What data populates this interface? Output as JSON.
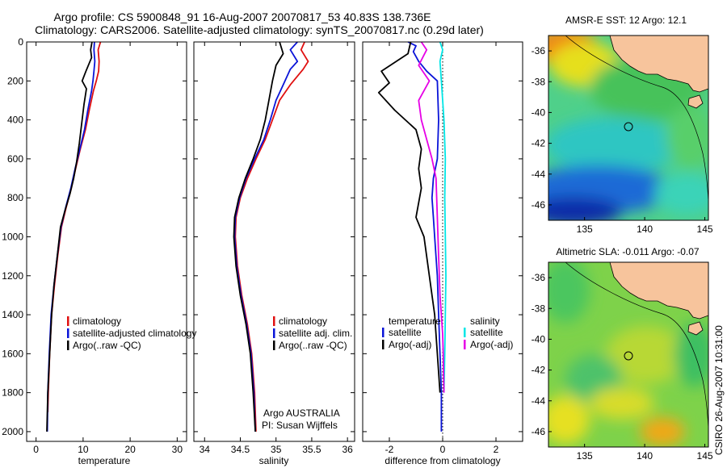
{
  "header": {
    "title_line1": "Argo profile: CS 5900848_91 16-Aug-2007 20070817_53 40.83S 138.736E",
    "title_line2": "Climatology: CARS2006. Satellite-adjusted climatology: synTS_20070817.nc (0.29d later)"
  },
  "credits": {
    "argo": "Argo AUSTRALIA",
    "pi": "PI: Susan Wijffels",
    "stamp": "CSIRO 26-Aug-2007 10:31:00"
  },
  "colors": {
    "climatology": "#e01010",
    "satellite": "#0a14d8",
    "argo": "#000000",
    "sal_satellite": "#00e6e6",
    "sal_argo": "#e600e6",
    "land": "#f7c49c"
  },
  "chart_data": [
    {
      "type": "line",
      "id": "temperature",
      "xlabel": "temperature",
      "ylabel": "",
      "xlim": [
        -2,
        32
      ],
      "ylim": [
        2050,
        0
      ],
      "xticks": [
        "0",
        "10",
        "20",
        "30"
      ],
      "xtick_values": [
        0,
        10,
        20,
        30
      ],
      "yticks": [
        "0",
        "200",
        "400",
        "600",
        "800",
        "1000",
        "1200",
        "1400",
        "1600",
        "1800",
        "2000"
      ],
      "ytick_values": [
        0,
        200,
        400,
        600,
        800,
        1000,
        1200,
        1400,
        1600,
        1800,
        2000
      ],
      "legend": [
        "climatology",
        "satellite-adjusted climatology",
        "Argo(..raw -QC)"
      ],
      "legend_position": "lower-right",
      "series": [
        {
          "name": "climatology",
          "color": "#e01010",
          "x": [
            13.7,
            13.2,
            13.4,
            13.3,
            12.8,
            12.2,
            11.3,
            10.5,
            9.4,
            8.4,
            7.5,
            6.4,
            5.4,
            4.6,
            3.9,
            3.3,
            2.9,
            2.6,
            2.5
          ],
          "y": [
            0,
            40,
            100,
            150,
            200,
            250,
            350,
            450,
            550,
            650,
            750,
            850,
            950,
            1100,
            1250,
            1400,
            1600,
            1800,
            1900
          ]
        },
        {
          "name": "satellite-adjusted climatology",
          "color": "#0a14d8",
          "x": [
            12.4,
            12.3,
            12.5,
            12.3,
            12.1,
            11.8,
            11.0,
            10.3,
            9.3,
            8.3,
            7.4,
            6.3,
            5.3,
            4.5,
            3.8,
            3.2,
            2.8,
            2.5,
            2.4
          ],
          "y": [
            0,
            40,
            100,
            150,
            200,
            250,
            350,
            450,
            550,
            650,
            750,
            850,
            950,
            1100,
            1250,
            1400,
            1600,
            1800,
            2000
          ]
        },
        {
          "name": "Argo(..raw -QC)",
          "color": "#000000",
          "x": [
            11.9,
            11.6,
            11.8,
            10.6,
            9.8,
            10.7,
            10.2,
            9.7,
            9.2,
            8.6,
            8.0,
            7.2,
            6.2,
            5.2,
            4.5,
            3.8,
            3.3,
            2.9,
            2.5,
            2.3
          ],
          "y": [
            0,
            40,
            80,
            150,
            200,
            240,
            320,
            420,
            520,
            620,
            700,
            780,
            860,
            950,
            1100,
            1250,
            1400,
            1600,
            1800,
            2000
          ]
        }
      ]
    },
    {
      "type": "line",
      "id": "salinity",
      "xlabel": "salinity",
      "xlim": [
        33.85,
        36.1
      ],
      "ylim": [
        2050,
        0
      ],
      "xticks": [
        "34",
        "34.5",
        "35",
        "35.5",
        "36"
      ],
      "xtick_values": [
        34,
        34.5,
        35,
        35.5,
        36
      ],
      "legend": [
        "climatology",
        "satellite adj. clim.",
        "Argo(..raw -QC)"
      ],
      "legend_position": "lower-right",
      "series": [
        {
          "name": "climatology",
          "color": "#e01010",
          "x": [
            35.4,
            35.35,
            35.45,
            35.38,
            35.2,
            35.05,
            34.95,
            34.85,
            34.72,
            34.6,
            34.5,
            34.44,
            34.43,
            34.46,
            34.52,
            34.6,
            34.66,
            34.7,
            34.72
          ],
          "y": [
            0,
            40,
            100,
            140,
            220,
            300,
            400,
            500,
            600,
            700,
            800,
            900,
            1000,
            1150,
            1300,
            1450,
            1600,
            1800,
            2000
          ]
        },
        {
          "name": "satellite adj. clim.",
          "color": "#0a14d8",
          "x": [
            35.3,
            35.2,
            35.3,
            35.2,
            35.1,
            35.0,
            34.92,
            34.83,
            34.7,
            34.58,
            34.49,
            34.43,
            34.42,
            34.45,
            34.51,
            34.59,
            34.65,
            34.69,
            34.71
          ],
          "y": [
            0,
            40,
            100,
            140,
            220,
            300,
            400,
            500,
            600,
            700,
            800,
            900,
            1000,
            1150,
            1300,
            1450,
            1600,
            1800,
            2000
          ]
        },
        {
          "name": "Argo(..raw -QC)",
          "color": "#000000",
          "x": [
            35.05,
            35.1,
            35.0,
            34.95,
            34.9,
            34.85,
            34.78,
            34.68,
            34.57,
            34.48,
            34.42,
            34.41,
            34.44,
            34.5,
            34.58,
            34.64,
            34.68,
            34.71
          ],
          "y": [
            0,
            60,
            120,
            200,
            300,
            400,
            500,
            600,
            700,
            800,
            900,
            1000,
            1150,
            1300,
            1450,
            1600,
            1800,
            2000
          ]
        }
      ]
    },
    {
      "type": "line",
      "id": "difference",
      "xlabel": "difference from climatology",
      "xlim": [
        -3,
        3
      ],
      "ylim": [
        2050,
        0
      ],
      "xticks": [
        "-2",
        "0",
        "2"
      ],
      "xtick_values": [
        -2,
        0,
        2
      ],
      "legend": [
        "temperature",
        "satellite",
        "Argo(-adj)",
        "salinity",
        "satellite",
        "Argo(-adj)"
      ],
      "legend_position": "lower-center",
      "zero_line": true,
      "series": [
        {
          "name": "temperature satellite",
          "color": "#0a14d8",
          "x": [
            -1.3,
            -1.0,
            -1.1,
            -0.9,
            -0.6,
            -0.2,
            -0.15,
            -0.2,
            -0.35,
            -0.4,
            -0.35,
            -0.3,
            -0.2,
            -0.15,
            -0.1,
            -0.05,
            -0.05
          ],
          "y": [
            0,
            20,
            50,
            100,
            150,
            200,
            400,
            600,
            700,
            800,
            900,
            1000,
            1200,
            1400,
            1600,
            1800,
            2000
          ]
        },
        {
          "name": "temperature Argo(-adj)",
          "color": "#000000",
          "x": [
            -1.2,
            -1.3,
            -2.3,
            -2.0,
            -2.4,
            -1.8,
            -1.0,
            -0.8,
            -0.9,
            -0.8,
            -1.0,
            -0.7,
            -0.5,
            -0.3,
            -0.2,
            -0.1
          ],
          "y": [
            0,
            60,
            150,
            210,
            260,
            350,
            450,
            550,
            650,
            750,
            900,
            1000,
            1200,
            1400,
            1600,
            1800
          ]
        },
        {
          "name": "salinity satellite",
          "color": "#00e6e6",
          "x": [
            -0.1,
            0.0,
            -0.1,
            -0.05,
            0.05,
            0.1,
            0.08,
            0.1,
            0.12,
            0.1,
            0.08,
            0.05
          ],
          "y": [
            0,
            40,
            100,
            200,
            400,
            600,
            800,
            1000,
            1200,
            1400,
            1600,
            1800
          ]
        },
        {
          "name": "salinity Argo(-adj)",
          "color": "#e600e6",
          "x": [
            -0.8,
            -0.6,
            -0.9,
            -0.5,
            -0.9,
            -0.8,
            -0.6,
            -0.4,
            -0.25,
            -0.2,
            -0.15,
            -0.1,
            0.0,
            0.02,
            0.05
          ],
          "y": [
            0,
            40,
            120,
            200,
            300,
            400,
            500,
            600,
            700,
            900,
            1100,
            1300,
            1500,
            1600,
            1800
          ]
        }
      ]
    },
    {
      "type": "heatmap",
      "id": "sst_map",
      "title": "AMSR-E SST: 12 Argo: 12.1",
      "xlim": [
        132,
        145.3
      ],
      "ylim": [
        -47,
        -35
      ],
      "xticks": [
        "135",
        "140",
        "145"
      ],
      "xtick_values": [
        135,
        140,
        145
      ],
      "yticks": [
        "-36",
        "-38",
        "-40",
        "-42",
        "-44",
        "-46"
      ],
      "ytick_values": [
        -36,
        -38,
        -40,
        -42,
        -44,
        -46
      ],
      "marker": {
        "lon": 138.736,
        "lat": -40.83
      }
    },
    {
      "type": "heatmap",
      "id": "sla_map",
      "title": "Altimetric SLA: -0.011 Argo: -0.07",
      "xlim": [
        132,
        145.3
      ],
      "ylim": [
        -47,
        -35
      ],
      "xticks": [
        "135",
        "140",
        "145"
      ],
      "xtick_values": [
        135,
        140,
        145
      ],
      "yticks": [
        "-36",
        "-38",
        "-40",
        "-42",
        "-44",
        "-46"
      ],
      "ytick_values": [
        -36,
        -38,
        -40,
        -42,
        -44,
        -46
      ],
      "marker": {
        "lon": 138.736,
        "lat": -40.83
      }
    }
  ]
}
